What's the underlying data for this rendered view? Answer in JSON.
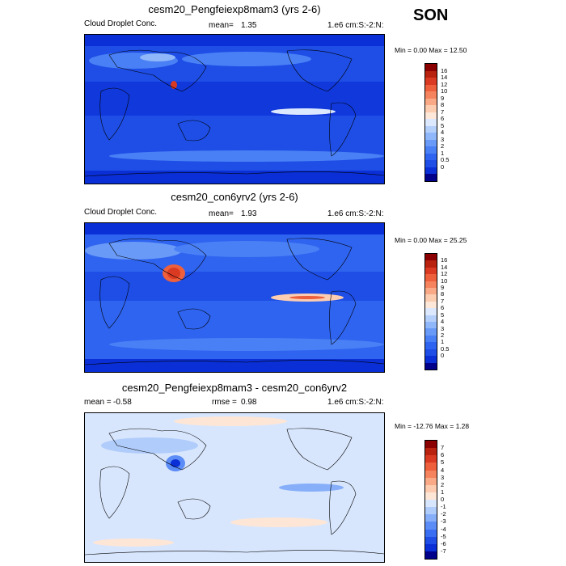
{
  "season_label": "SON",
  "colors": {
    "abs_scale": [
      "#00008b",
      "#0a2fd6",
      "#1e4ee6",
      "#2f64f0",
      "#4a80f5",
      "#6a9af7",
      "#8fb7fa",
      "#b5cffb",
      "#dce8fd",
      "#fde7d9",
      "#fccdb1",
      "#f9a985",
      "#f5845e",
      "#ee5f3c",
      "#db3a22",
      "#b8220f",
      "#8b0000"
    ],
    "diff_scale": [
      "#00008b",
      "#0a2fd6",
      "#1e4ee6",
      "#3a6ef2",
      "#5c8df6",
      "#86aef9",
      "#b0ccfb",
      "#d8e6fd",
      "#fde6d6",
      "#fccbb0",
      "#f9a985",
      "#f5845e",
      "#ee5f3c",
      "#db3a22",
      "#b8220f",
      "#8b0000"
    ]
  },
  "panels": [
    {
      "title": "cesm20_Pengfeiexp8mam3 (yrs 2-6)",
      "left_label": "Cloud Droplet Conc.",
      "mean_label": "mean=",
      "mean_value": "1.35",
      "rmse_label": "",
      "rmse_value": "",
      "units": "1.e6 cm:S:-2:N:",
      "minmax": "Min =   0.00 Max =  12.50",
      "colorbar_labels": [
        "16",
        "14",
        "12",
        "10",
        "9",
        "8",
        "7",
        "6",
        "5",
        "4",
        "3",
        "2",
        "1",
        "0.5",
        "0"
      ]
    },
    {
      "title": "cesm20_con6yrv2 (yrs 2-6)",
      "left_label": "Cloud Droplet Conc.",
      "mean_label": "mean=",
      "mean_value": "1.93",
      "rmse_label": "",
      "rmse_value": "",
      "units": "1.e6 cm:S:-2:N:",
      "minmax": "Min =   0.00 Max =  25.25",
      "colorbar_labels": [
        "16",
        "14",
        "12",
        "10",
        "9",
        "8",
        "7",
        "6",
        "5",
        "4",
        "3",
        "2",
        "1",
        "0.5",
        "0"
      ]
    },
    {
      "title": "cesm20_Pengfeiexp8mam3 - cesm20_con6yrv2",
      "left_label": "mean =",
      "mean_label": "",
      "mean_value": "-0.58",
      "rmse_label": "rmse =",
      "rmse_value": "0.98",
      "units": "1.e6 cm:S:-2:N:",
      "minmax": "Min = -12.76 Max =    1.28",
      "colorbar_labels": [
        "7",
        "6",
        "5",
        "4",
        "3",
        "2",
        "1",
        "0",
        "-1",
        "-2",
        "-3",
        "-4",
        "-5",
        "-6",
        "-7"
      ]
    }
  ],
  "chart_data": [
    {
      "type": "heatmap",
      "title": "cesm20_Pengfeiexp8mam3 (yrs 2-6)",
      "variable": "Cloud Droplet Conc.",
      "units": "1.e6 cm:S:-2:N:",
      "mean": 1.35,
      "min": 0.0,
      "max": 12.5,
      "contour_levels": [
        0,
        0.5,
        1,
        2,
        3,
        4,
        5,
        6,
        7,
        8,
        9,
        10,
        12,
        14,
        16
      ],
      "season": "SON"
    },
    {
      "type": "heatmap",
      "title": "cesm20_con6yrv2 (yrs 2-6)",
      "variable": "Cloud Droplet Conc.",
      "units": "1.e6 cm:S:-2:N:",
      "mean": 1.93,
      "min": 0.0,
      "max": 25.25,
      "contour_levels": [
        0,
        0.5,
        1,
        2,
        3,
        4,
        5,
        6,
        7,
        8,
        9,
        10,
        12,
        14,
        16
      ],
      "season": "SON"
    },
    {
      "type": "heatmap",
      "title": "cesm20_Pengfeiexp8mam3 - cesm20_con6yrv2",
      "units": "1.e6 cm:S:-2:N:",
      "mean": -0.58,
      "rmse": 0.98,
      "min": -12.76,
      "max": 1.28,
      "contour_levels": [
        -7,
        -6,
        -5,
        -4,
        -3,
        -2,
        -1,
        0,
        1,
        2,
        3,
        4,
        5,
        6,
        7
      ],
      "season": "SON"
    }
  ]
}
